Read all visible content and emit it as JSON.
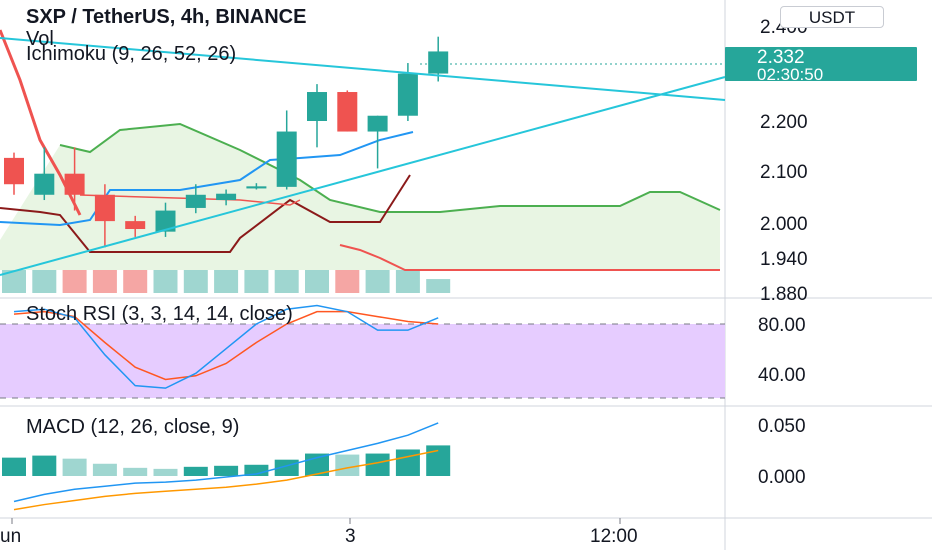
{
  "header": {
    "title": "SXP / TetherUS, 4h, BINANCE",
    "currency_button": "USDT"
  },
  "colors": {
    "up": "#26a69a",
    "down": "#ef5350",
    "up_vol": "#9fd6d0",
    "down_vol": "#f5a6a4",
    "trendline": "#26c6da",
    "tenkan": "#2196f3",
    "kijun": "#8b1a1a",
    "span_a": "#4caf50",
    "span_b": "#ef5350",
    "cloud": "#e8f5e3",
    "stoch_k": "#2196f3",
    "stoch_d": "#ff5722",
    "stoch_band": "#e6ccff",
    "macd": "#2196f3",
    "signal": "#ff9800",
    "price_tag": "#26a69a"
  },
  "chart_data": [
    {
      "type": "candlestick",
      "title": "SXP / TetherUS, 4h, BINANCE",
      "indicators": [
        "Vol",
        "Ichimoku (9, 26, 52, 26)"
      ],
      "y_ticks": [
        "2.400",
        "2.200",
        "2.100",
        "2.000",
        "1.940",
        "1.880"
      ],
      "last_price": "2.332",
      "countdown": "02:30:50",
      "candles": [
        {
          "open": 2.13,
          "high": 2.14,
          "low": 2.06,
          "close": 2.08
        },
        {
          "open": 2.06,
          "high": 2.15,
          "low": 2.05,
          "close": 2.1
        },
        {
          "open": 2.1,
          "high": 2.15,
          "low": 2.03,
          "close": 2.06
        },
        {
          "open": 2.06,
          "high": 2.08,
          "low": 1.96,
          "close": 2.01
        },
        {
          "open": 2.01,
          "high": 2.02,
          "low": 1.98,
          "close": 1.995
        },
        {
          "open": 1.99,
          "high": 2.045,
          "low": 1.98,
          "close": 2.03
        },
        {
          "open": 2.035,
          "high": 2.08,
          "low": 2.025,
          "close": 2.06
        },
        {
          "open": 2.05,
          "high": 2.07,
          "low": 2.04,
          "close": 2.062
        },
        {
          "open": 2.072,
          "high": 2.082,
          "low": 2.07,
          "close": 2.076
        },
        {
          "open": 2.075,
          "high": 2.22,
          "low": 2.07,
          "close": 2.18
        },
        {
          "open": 2.2,
          "high": 2.27,
          "low": 2.15,
          "close": 2.255
        },
        {
          "open": 2.255,
          "high": 2.258,
          "low": 2.18,
          "close": 2.18
        },
        {
          "open": 2.18,
          "high": 2.21,
          "low": 2.11,
          "close": 2.21
        },
        {
          "open": 2.21,
          "high": 2.31,
          "low": 2.2,
          "close": 2.29
        },
        {
          "open": 2.29,
          "high": 2.36,
          "low": 2.275,
          "close": 2.332
        }
      ],
      "volume": [
        45,
        40,
        48,
        40,
        35,
        30,
        32,
        33,
        40,
        77,
        65,
        40,
        32,
        50,
        15
      ],
      "volume_up": [
        true,
        true,
        false,
        false,
        false,
        true,
        true,
        true,
        true,
        true,
        true,
        false,
        true,
        true,
        true
      ]
    },
    {
      "type": "line",
      "title": "Stoch RSI (3, 3, 14, 14, close)",
      "y_ticks": [
        "80.00",
        "40.00"
      ],
      "band": [
        20,
        80
      ],
      "series": [
        {
          "key": "k",
          "values": [
            90,
            92,
            85,
            55,
            30,
            28,
            40,
            60,
            80,
            92,
            95,
            90,
            75,
            75,
            85
          ]
        },
        {
          "key": "d",
          "values": [
            88,
            90,
            86,
            65,
            45,
            35,
            38,
            48,
            65,
            80,
            90,
            90,
            86,
            82,
            80
          ]
        }
      ]
    },
    {
      "type": "bar+line",
      "title": "MACD (12, 26, close, 9)",
      "y_ticks": [
        "0.050",
        "0.000"
      ],
      "histogram": [
        0.018,
        0.02,
        0.017,
        0.012,
        0.008,
        0.007,
        0.009,
        0.01,
        0.011,
        0.016,
        0.022,
        0.021,
        0.022,
        0.026,
        0.03
      ],
      "series": [
        {
          "key": "macd",
          "values": [
            -0.025,
            -0.018,
            -0.013,
            -0.01,
            -0.007,
            -0.006,
            -0.004,
            -0.001,
            0.002,
            0.01,
            0.018,
            0.025,
            0.032,
            0.04,
            0.052
          ]
        },
        {
          "key": "signal",
          "values": [
            -0.033,
            -0.028,
            -0.024,
            -0.02,
            -0.017,
            -0.015,
            -0.013,
            -0.011,
            -0.008,
            -0.004,
            0.002,
            0.008,
            0.013,
            0.019,
            0.025
          ]
        }
      ]
    }
  ],
  "x_ticks": [
    "un",
    "3",
    "12:00"
  ]
}
